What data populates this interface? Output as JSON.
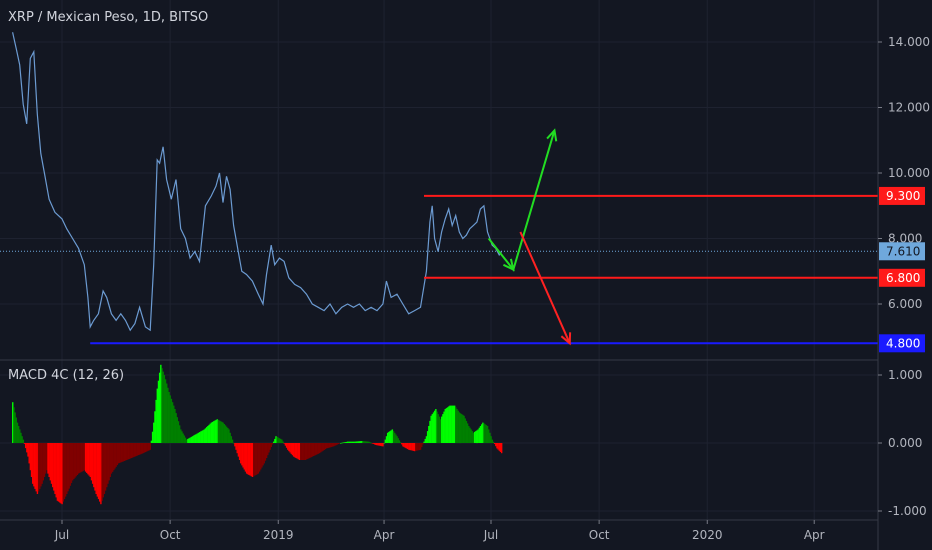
{
  "chart_data": [
    {
      "type": "line",
      "title": "XRP / Mexican Peso, 1D, BITSO",
      "ylim": [
        4.4,
        15.7
      ],
      "y_ticks": [
        6.0,
        8.0,
        10.0,
        12.0,
        14.0
      ],
      "y_tick_labels": [
        "6.000",
        "8.000",
        "10.000",
        "12.000",
        "14.000"
      ],
      "current_price": {
        "value": 7.61,
        "label": "7.610"
      },
      "horizontal_lines": [
        {
          "value": 9.3,
          "label": "9.300",
          "color": "#ff1a1a",
          "from_date": "2019-05-05"
        },
        {
          "value": 6.8,
          "label": "6.800",
          "color": "#ff1a1a",
          "from_date": "2019-05-05"
        },
        {
          "value": 4.8,
          "label": "4.800",
          "color": "#1a1aff",
          "from_date": "2018-07-25"
        }
      ],
      "arrows": [
        {
          "color": "#22dd22",
          "points": [
            [
              "2019-06-29",
              8.0
            ],
            [
              "2019-07-20",
              7.05
            ],
            [
              "2019-08-24",
              11.3
            ]
          ]
        },
        {
          "color": "#ff2222",
          "points": [
            [
              "2019-07-26",
              8.2
            ],
            [
              "2019-09-06",
              4.8
            ]
          ]
        }
      ],
      "series": [
        {
          "color": "#6c9bd2",
          "points": [
            [
              "2018-05-20",
              14.3
            ],
            [
              "2018-05-23",
              13.8
            ],
            [
              "2018-05-26",
              13.3
            ],
            [
              "2018-05-29",
              12.1
            ],
            [
              "2018-06-01",
              11.5
            ],
            [
              "2018-06-04",
              13.5
            ],
            [
              "2018-06-07",
              13.7
            ],
            [
              "2018-06-10",
              11.8
            ],
            [
              "2018-06-13",
              10.6
            ],
            [
              "2018-06-16",
              10.0
            ],
            [
              "2018-06-20",
              9.2
            ],
            [
              "2018-06-25",
              8.8
            ],
            [
              "2018-07-01",
              8.6
            ],
            [
              "2018-07-05",
              8.3
            ],
            [
              "2018-07-10",
              8.0
            ],
            [
              "2018-07-15",
              7.7
            ],
            [
              "2018-07-20",
              7.2
            ],
            [
              "2018-07-23",
              6.2
            ],
            [
              "2018-07-25",
              5.3
            ],
            [
              "2018-07-28",
              5.5
            ],
            [
              "2018-08-01",
              5.7
            ],
            [
              "2018-08-05",
              6.4
            ],
            [
              "2018-08-08",
              6.2
            ],
            [
              "2018-08-12",
              5.7
            ],
            [
              "2018-08-16",
              5.5
            ],
            [
              "2018-08-20",
              5.7
            ],
            [
              "2018-08-24",
              5.5
            ],
            [
              "2018-08-28",
              5.2
            ],
            [
              "2018-09-01",
              5.4
            ],
            [
              "2018-09-05",
              5.9
            ],
            [
              "2018-09-10",
              5.3
            ],
            [
              "2018-09-14",
              5.2
            ],
            [
              "2018-09-17",
              7.2
            ],
            [
              "2018-09-20",
              10.4
            ],
            [
              "2018-09-22",
              10.3
            ],
            [
              "2018-09-25",
              10.8
            ],
            [
              "2018-09-28",
              9.8
            ],
            [
              "2018-10-02",
              9.2
            ],
            [
              "2018-10-06",
              9.8
            ],
            [
              "2018-10-10",
              8.3
            ],
            [
              "2018-10-14",
              8.0
            ],
            [
              "2018-10-18",
              7.4
            ],
            [
              "2018-10-22",
              7.6
            ],
            [
              "2018-10-26",
              7.3
            ],
            [
              "2018-10-31",
              9.0
            ],
            [
              "2018-11-05",
              9.3
            ],
            [
              "2018-11-09",
              9.6
            ],
            [
              "2018-11-12",
              10.0
            ],
            [
              "2018-11-15",
              9.1
            ],
            [
              "2018-11-18",
              9.9
            ],
            [
              "2018-11-21",
              9.5
            ],
            [
              "2018-11-24",
              8.4
            ],
            [
              "2018-11-27",
              7.8
            ],
            [
              "2018-12-01",
              7.0
            ],
            [
              "2018-12-05",
              6.9
            ],
            [
              "2018-12-10",
              6.7
            ],
            [
              "2018-12-15",
              6.3
            ],
            [
              "2018-12-19",
              6.0
            ],
            [
              "2018-12-22",
              6.9
            ],
            [
              "2018-12-26",
              7.8
            ],
            [
              "2018-12-29",
              7.2
            ],
            [
              "2019-01-02",
              7.4
            ],
            [
              "2019-01-06",
              7.3
            ],
            [
              "2019-01-10",
              6.8
            ],
            [
              "2019-01-15",
              6.6
            ],
            [
              "2019-01-20",
              6.5
            ],
            [
              "2019-01-25",
              6.3
            ],
            [
              "2019-01-30",
              6.0
            ],
            [
              "2019-02-04",
              5.9
            ],
            [
              "2019-02-09",
              5.8
            ],
            [
              "2019-02-14",
              6.0
            ],
            [
              "2019-02-19",
              5.7
            ],
            [
              "2019-02-24",
              5.9
            ],
            [
              "2019-03-01",
              6.0
            ],
            [
              "2019-03-06",
              5.9
            ],
            [
              "2019-03-11",
              6.0
            ],
            [
              "2019-03-16",
              5.8
            ],
            [
              "2019-03-21",
              5.9
            ],
            [
              "2019-03-26",
              5.8
            ],
            [
              "2019-03-31",
              6.0
            ],
            [
              "2019-04-03",
              6.7
            ],
            [
              "2019-04-07",
              6.2
            ],
            [
              "2019-04-12",
              6.3
            ],
            [
              "2019-04-17",
              6.0
            ],
            [
              "2019-04-22",
              5.7
            ],
            [
              "2019-04-27",
              5.8
            ],
            [
              "2019-05-02",
              5.9
            ],
            [
              "2019-05-07",
              7.0
            ],
            [
              "2019-05-10",
              8.5
            ],
            [
              "2019-05-12",
              9.0
            ],
            [
              "2019-05-14",
              8.0
            ],
            [
              "2019-05-17",
              7.6
            ],
            [
              "2019-05-20",
              8.2
            ],
            [
              "2019-05-23",
              8.6
            ],
            [
              "2019-05-26",
              8.9
            ],
            [
              "2019-05-29",
              8.4
            ],
            [
              "2019-06-01",
              8.7
            ],
            [
              "2019-06-04",
              8.2
            ],
            [
              "2019-06-07",
              8.0
            ],
            [
              "2019-06-10",
              8.1
            ],
            [
              "2019-06-13",
              8.3
            ],
            [
              "2019-06-16",
              8.4
            ],
            [
              "2019-06-19",
              8.5
            ],
            [
              "2019-06-22",
              8.9
            ],
            [
              "2019-06-25",
              9.0
            ],
            [
              "2019-06-28",
              8.2
            ],
            [
              "2019-07-02",
              7.8
            ],
            [
              "2019-07-05",
              7.7
            ],
            [
              "2019-07-08",
              7.5
            ],
            [
              "2019-07-10",
              7.61
            ]
          ]
        }
      ]
    },
    {
      "type": "bar",
      "title": "MACD 4C (12, 26)",
      "ylim": [
        -1.05,
        1.25
      ],
      "y_ticks": [
        1.0,
        0.0,
        -1.0
      ],
      "y_tick_labels": [
        "1.000",
        "0.000",
        "-1.000"
      ],
      "colors": {
        "positive_rising": "#00ff00",
        "positive_falling": "#008000",
        "negative_falling": "#ff0000",
        "negative_rising": "#800000"
      },
      "series": [
        {
          "name": "MACD",
          "points": [
            [
              "2018-05-20",
              0.6
            ],
            [
              "2018-05-24",
              0.3
            ],
            [
              "2018-05-29",
              0.05
            ],
            [
              "2018-06-02",
              -0.2
            ],
            [
              "2018-06-06",
              -0.6
            ],
            [
              "2018-06-10",
              -0.75
            ],
            [
              "2018-06-14",
              -0.6
            ],
            [
              "2018-06-18",
              -0.4
            ],
            [
              "2018-06-22",
              -0.6
            ],
            [
              "2018-06-27",
              -0.85
            ],
            [
              "2018-07-01",
              -0.9
            ],
            [
              "2018-07-05",
              -0.75
            ],
            [
              "2018-07-10",
              -0.55
            ],
            [
              "2018-07-15",
              -0.45
            ],
            [
              "2018-07-20",
              -0.4
            ],
            [
              "2018-07-25",
              -0.5
            ],
            [
              "2018-07-30",
              -0.75
            ],
            [
              "2018-08-03",
              -0.9
            ],
            [
              "2018-08-07",
              -0.7
            ],
            [
              "2018-08-12",
              -0.45
            ],
            [
              "2018-08-18",
              -0.3
            ],
            [
              "2018-08-25",
              -0.25
            ],
            [
              "2018-09-01",
              -0.2
            ],
            [
              "2018-09-08",
              -0.15
            ],
            [
              "2018-09-14",
              -0.1
            ],
            [
              "2018-09-17",
              0.3
            ],
            [
              "2018-09-20",
              0.8
            ],
            [
              "2018-09-23",
              1.15
            ],
            [
              "2018-09-26",
              1.0
            ],
            [
              "2018-09-30",
              0.75
            ],
            [
              "2018-10-05",
              0.5
            ],
            [
              "2018-10-10",
              0.2
            ],
            [
              "2018-10-15",
              0.05
            ],
            [
              "2018-10-20",
              0.1
            ],
            [
              "2018-10-25",
              0.15
            ],
            [
              "2018-10-30",
              0.2
            ],
            [
              "2018-11-05",
              0.3
            ],
            [
              "2018-11-10",
              0.35
            ],
            [
              "2018-11-15",
              0.3
            ],
            [
              "2018-11-20",
              0.2
            ],
            [
              "2018-11-25",
              -0.05
            ],
            [
              "2018-11-30",
              -0.3
            ],
            [
              "2018-12-05",
              -0.45
            ],
            [
              "2018-12-10",
              -0.5
            ],
            [
              "2018-12-15",
              -0.45
            ],
            [
              "2018-12-20",
              -0.3
            ],
            [
              "2018-12-25",
              -0.1
            ],
            [
              "2018-12-30",
              0.1
            ],
            [
              "2019-01-04",
              0.05
            ],
            [
              "2019-01-09",
              -0.1
            ],
            [
              "2019-01-14",
              -0.2
            ],
            [
              "2019-01-19",
              -0.25
            ],
            [
              "2019-01-24",
              -0.25
            ],
            [
              "2019-01-30",
              -0.2
            ],
            [
              "2019-02-05",
              -0.15
            ],
            [
              "2019-02-11",
              -0.08
            ],
            [
              "2019-02-17",
              -0.05
            ],
            [
              "2019-02-23",
              0.0
            ],
            [
              "2019-03-01",
              0.02
            ],
            [
              "2019-03-07",
              0.02
            ],
            [
              "2019-03-13",
              0.03
            ],
            [
              "2019-03-19",
              0.02
            ],
            [
              "2019-03-25",
              -0.03
            ],
            [
              "2019-03-31",
              -0.05
            ],
            [
              "2019-04-04",
              0.15
            ],
            [
              "2019-04-08",
              0.2
            ],
            [
              "2019-04-12",
              0.1
            ],
            [
              "2019-04-17",
              -0.05
            ],
            [
              "2019-04-22",
              -0.1
            ],
            [
              "2019-04-27",
              -0.12
            ],
            [
              "2019-05-02",
              -0.1
            ],
            [
              "2019-05-07",
              0.1
            ],
            [
              "2019-05-11",
              0.4
            ],
            [
              "2019-05-15",
              0.5
            ],
            [
              "2019-05-19",
              0.35
            ],
            [
              "2019-05-23",
              0.5
            ],
            [
              "2019-05-27",
              0.55
            ],
            [
              "2019-05-31",
              0.55
            ],
            [
              "2019-06-04",
              0.45
            ],
            [
              "2019-06-08",
              0.4
            ],
            [
              "2019-06-12",
              0.25
            ],
            [
              "2019-06-16",
              0.15
            ],
            [
              "2019-06-20",
              0.2
            ],
            [
              "2019-06-24",
              0.3
            ],
            [
              "2019-06-28",
              0.25
            ],
            [
              "2019-07-02",
              0.05
            ],
            [
              "2019-07-06",
              -0.08
            ],
            [
              "2019-07-10",
              -0.15
            ]
          ]
        }
      ]
    }
  ],
  "x_axis": {
    "ticks": [
      {
        "date": "2018-07-01",
        "label": "Jul"
      },
      {
        "date": "2018-10-01",
        "label": "Oct"
      },
      {
        "date": "2019-01-01",
        "label": "2019"
      },
      {
        "date": "2019-04-01",
        "label": "Apr"
      },
      {
        "date": "2019-07-01",
        "label": "Jul"
      },
      {
        "date": "2019-10-01",
        "label": "Oct"
      },
      {
        "date": "2020-01-01",
        "label": "2020"
      },
      {
        "date": "2020-04-01",
        "label": "Apr"
      }
    ]
  },
  "colors": {
    "background": "#131722",
    "grid": "#1e2230",
    "axis_text": "#b2b5be",
    "current_price_bg": "#6fa8dc",
    "current_price_text": "#131722",
    "price_line": "#6c9bd2"
  }
}
